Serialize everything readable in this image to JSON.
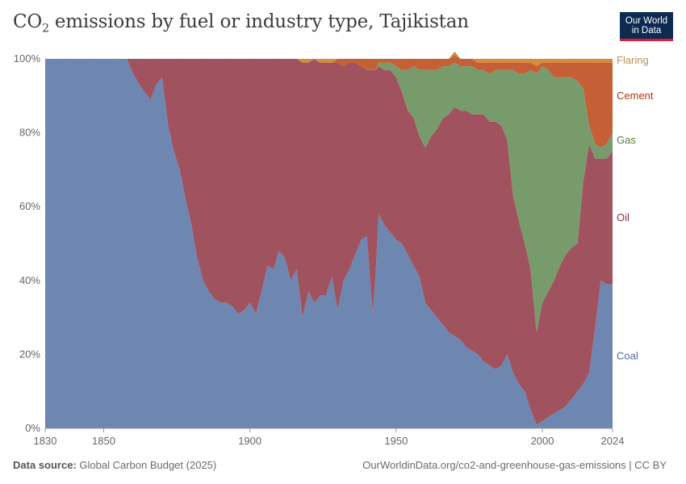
{
  "header": {
    "title_main": "CO",
    "title_sub": "2",
    "title_rest": " emissions by fuel or industry type, Tajikistan",
    "logo_line1": "Our World",
    "logo_line2": "in Data"
  },
  "footer": {
    "source_label": "Data source:",
    "source_value": "Global Carbon Budget (2025)",
    "url": "OurWorldinData.org/co2-and-greenhouse-gas-emissions | CC BY"
  },
  "colors": {
    "Coal": "#6d87b1",
    "Oil": "#a0535e",
    "Gas": "#789b6b",
    "Cement": "#c55f35",
    "Flaring": "#d68d3b",
    "grid": "#dcdcdc"
  },
  "label_colors": {
    "Coal": "#4c6a9c",
    "Oil": "#883039",
    "Gas": "#578145",
    "Cement": "#b13507",
    "Flaring": "#bc8e5a"
  },
  "chart_data": {
    "type": "area",
    "stacked": true,
    "grid": true,
    "legend": "right-inline",
    "xlim": [
      1830,
      2024
    ],
    "ylim": [
      0,
      100
    ],
    "yticks": [
      "0%",
      "20%",
      "40%",
      "60%",
      "80%",
      "100%"
    ],
    "ytick_values": [
      0,
      20,
      40,
      60,
      80,
      100
    ],
    "xticks": [
      "1830",
      "1850",
      "1900",
      "1950",
      "2000",
      "2024"
    ],
    "xtick_values": [
      1830,
      1850,
      1900,
      1950,
      2000,
      2024
    ],
    "x": [
      1830,
      1858,
      1860,
      1863,
      1866,
      1868,
      1870,
      1872,
      1874,
      1876,
      1878,
      1880,
      1882,
      1884,
      1886,
      1888,
      1890,
      1892,
      1894,
      1896,
      1898,
      1900,
      1902,
      1904,
      1906,
      1908,
      1910,
      1912,
      1914,
      1916,
      1918,
      1920,
      1922,
      1924,
      1926,
      1928,
      1930,
      1932,
      1934,
      1936,
      1938,
      1940,
      1942,
      1943,
      1944,
      1946,
      1948,
      1950,
      1952,
      1954,
      1956,
      1958,
      1960,
      1962,
      1964,
      1966,
      1968,
      1970,
      1972,
      1974,
      1976,
      1978,
      1980,
      1982,
      1984,
      1986,
      1988,
      1990,
      1992,
      1994,
      1996,
      1998,
      2000,
      2002,
      2004,
      2006,
      2008,
      2010,
      2012,
      2014,
      2016,
      2018,
      2020,
      2022,
      2024
    ],
    "series": [
      {
        "name": "Coal",
        "values": [
          100,
          100,
          96,
          92,
          89,
          93,
          95,
          82,
          75,
          70,
          62,
          55,
          46,
          40,
          37,
          35,
          34,
          34,
          33,
          31,
          32,
          34,
          31,
          37,
          44,
          43,
          48,
          46,
          40,
          43,
          30,
          37,
          34,
          36,
          36,
          41,
          32,
          40,
          43,
          47,
          51,
          52,
          31,
          42,
          58,
          55,
          53,
          51,
          50,
          47,
          44,
          41,
          34,
          32,
          30,
          28,
          26,
          25,
          24,
          22,
          21,
          20,
          18,
          17,
          16,
          17,
          20,
          15,
          12,
          10,
          5,
          1,
          2,
          3,
          4,
          5,
          6,
          8,
          10,
          12,
          15,
          27,
          40,
          39,
          39
        ]
      },
      {
        "name": "Oil",
        "values": [
          0,
          0,
          4,
          8,
          11,
          7,
          5,
          18,
          25,
          30,
          38,
          45,
          54,
          60,
          63,
          65,
          66,
          66,
          67,
          69,
          68,
          66,
          69,
          63,
          56,
          57,
          52,
          54,
          60,
          57,
          69,
          62,
          66,
          63,
          63,
          58,
          67,
          58,
          56,
          52,
          47,
          45,
          66,
          55,
          40,
          42,
          44,
          44,
          41,
          39,
          40,
          38,
          42,
          47,
          51,
          56,
          59,
          62,
          62,
          64,
          64,
          65,
          67,
          66,
          67,
          65,
          58,
          48,
          44,
          40,
          38,
          25,
          32,
          34,
          36,
          39,
          41,
          41,
          40,
          55,
          62,
          46,
          33,
          34,
          36
        ]
      },
      {
        "name": "Gas",
        "values": [
          0,
          0,
          0,
          0,
          0,
          0,
          0,
          0,
          0,
          0,
          0,
          0,
          0,
          0,
          0,
          0,
          0,
          0,
          0,
          0,
          0,
          0,
          0,
          0,
          0,
          0,
          0,
          0,
          0,
          0,
          0,
          0,
          0,
          0,
          0,
          0,
          0,
          0,
          0,
          0,
          0,
          0,
          0,
          0,
          1,
          2,
          2,
          3,
          6,
          11,
          14,
          18,
          21,
          18,
          16,
          14,
          13,
          12,
          12,
          12,
          13,
          12,
          12,
          13,
          14,
          15,
          19,
          34,
          40,
          46,
          54,
          70,
          64,
          60,
          55,
          51,
          48,
          46,
          44,
          25,
          5,
          4,
          3,
          4,
          5
        ]
      },
      {
        "name": "Cement",
        "values": [
          0,
          0,
          0,
          0,
          0,
          0,
          0,
          0,
          0,
          0,
          0,
          0,
          0,
          0,
          0,
          0,
          0,
          0,
          0,
          0,
          0,
          0,
          0,
          0,
          0,
          0,
          0,
          0,
          0,
          0,
          0,
          0,
          0,
          0,
          0,
          0,
          1,
          2,
          1,
          1,
          2,
          3,
          3,
          3,
          1,
          1,
          1,
          2,
          3,
          3,
          2,
          3,
          3,
          3,
          3,
          2,
          2,
          2,
          2,
          2,
          2,
          2,
          2,
          3,
          2,
          2,
          2,
          2,
          3,
          3,
          2,
          2,
          1,
          2,
          4,
          4,
          4,
          4,
          5,
          7,
          17,
          22,
          23,
          22,
          19
        ]
      },
      {
        "name": "Flaring",
        "values": [
          0,
          0,
          0,
          0,
          0,
          0,
          0,
          0,
          0,
          0,
          0,
          0,
          0,
          0,
          0,
          0,
          0,
          0,
          0,
          0,
          0,
          0,
          0,
          0,
          0,
          0,
          0,
          0,
          0,
          0,
          1,
          1,
          0,
          1,
          1,
          1,
          0,
          0,
          0,
          0,
          0,
          0,
          0,
          0,
          0,
          0,
          0,
          0,
          0,
          0,
          0,
          0,
          0,
          0,
          0,
          0,
          0,
          1,
          0,
          0,
          0,
          1,
          1,
          1,
          1,
          1,
          1,
          1,
          1,
          1,
          1,
          2,
          1,
          1,
          1,
          1,
          1,
          1,
          1,
          1,
          1,
          1,
          1,
          1,
          1
        ]
      }
    ]
  }
}
